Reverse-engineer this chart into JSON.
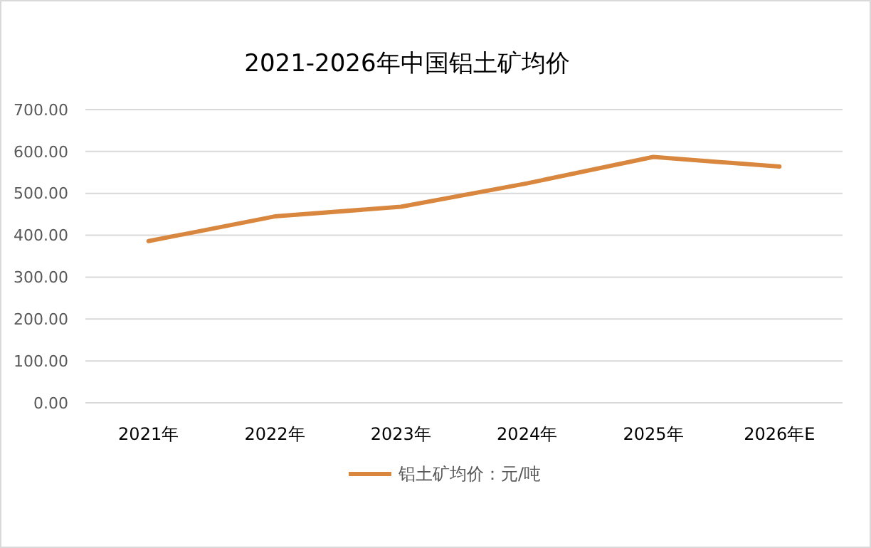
{
  "chart_data": {
    "type": "line",
    "title": "2021-2026年中国铝土矿均价",
    "categories": [
      "2021年",
      "2022年",
      "2023年",
      "2024年",
      "2025年",
      "2026年E"
    ],
    "series": [
      {
        "name": "铝土矿均价：元/吨",
        "color": "#d9873f",
        "values": [
          386,
          445,
          468,
          524,
          587,
          564
        ]
      }
    ],
    "ylim": [
      0,
      700
    ],
    "yticks": [
      {
        "value": 0,
        "label": "0.00"
      },
      {
        "value": 100,
        "label": "100.00"
      },
      {
        "value": 200,
        "label": "200.00"
      },
      {
        "value": 300,
        "label": "300.00"
      },
      {
        "value": 400,
        "label": "400.00"
      },
      {
        "value": 500,
        "label": "500.00"
      },
      {
        "value": 600,
        "label": "600.00"
      },
      {
        "value": 700,
        "label": "700.00"
      }
    ],
    "grid": "y",
    "legend": "bottom",
    "marker": "none",
    "line_style": "solid"
  }
}
